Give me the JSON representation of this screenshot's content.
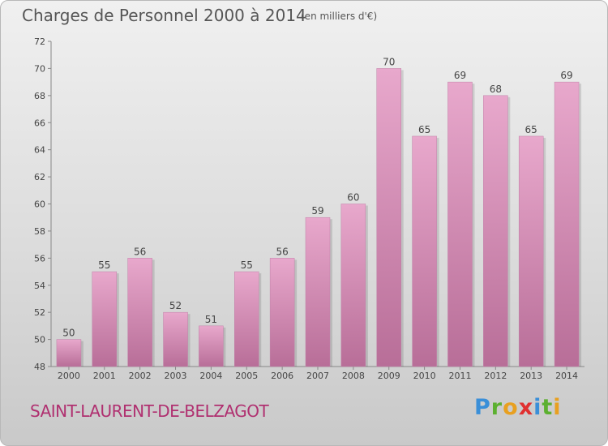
{
  "chart_data": {
    "type": "bar",
    "title": "Charges de Personnel 2000 à 2014",
    "subtitle": "(en milliers d'€)",
    "categories": [
      "2000",
      "2001",
      "2002",
      "2003",
      "2004",
      "2005",
      "2006",
      "2007",
      "2008",
      "2009",
      "2010",
      "2011",
      "2012",
      "2013",
      "2014"
    ],
    "values": [
      50,
      55,
      56,
      52,
      51,
      55,
      56,
      59,
      60,
      70,
      65,
      69,
      68,
      65,
      69
    ],
    "ylim": [
      48,
      72
    ],
    "yticks": [
      48,
      50,
      52,
      54,
      56,
      58,
      60,
      62,
      64,
      66,
      68,
      70,
      72
    ],
    "grid": false,
    "bar_color": "#d890b8",
    "bar_color_light": "#e8a8cc",
    "bar_color_dark": "#b86e98"
  },
  "town": "SAINT-LAURENT-DE-BELZAGOT",
  "logo": {
    "letters": [
      {
        "char": "P",
        "color": "#3a8fd8"
      },
      {
        "char": "r",
        "color": "#5cb030"
      },
      {
        "char": "o",
        "color": "#e8a020"
      },
      {
        "char": "x",
        "color": "#e03030"
      },
      {
        "char": "i",
        "color": "#3a8fd8"
      },
      {
        "char": "t",
        "color": "#5cb030"
      },
      {
        "char": "i",
        "color": "#e8a020"
      }
    ]
  }
}
